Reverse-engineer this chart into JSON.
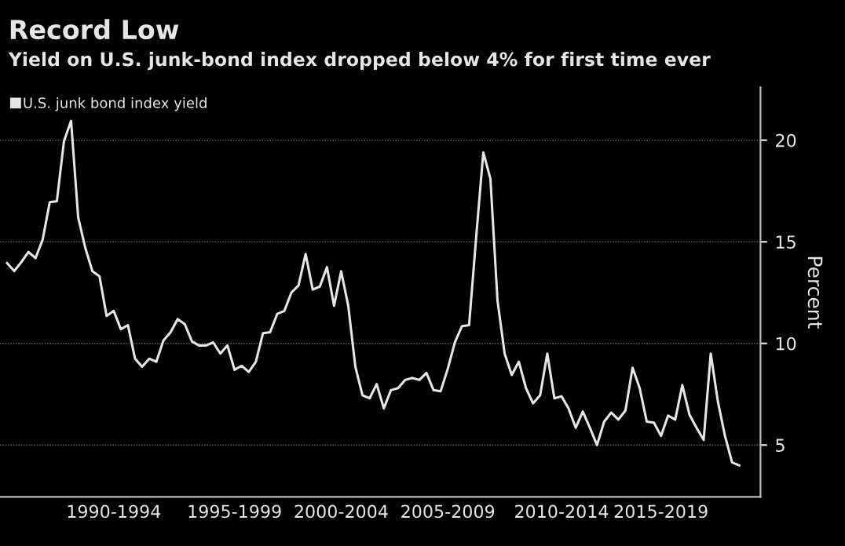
{
  "chart_data": {
    "type": "line",
    "title": "Record Low",
    "subtitle": "Yield on U.S. junk-bond index dropped below 4% for first time ever",
    "ylabel": "Percent",
    "categories": [
      null,
      null,
      null,
      null,
      null,
      null,
      null,
      null,
      null,
      null,
      null,
      null,
      null,
      null,
      null,
      "1990-1994",
      null,
      null,
      null,
      null,
      null,
      null,
      null,
      null,
      null,
      null,
      null,
      null,
      null,
      null,
      null,
      null,
      "1995-1999",
      null,
      null,
      null,
      null,
      null,
      null,
      null,
      null,
      null,
      null,
      null,
      null,
      null,
      null,
      "2000-2004",
      null,
      null,
      null,
      null,
      null,
      null,
      null,
      null,
      null,
      null,
      null,
      null,
      null,
      null,
      "2005-2009",
      null,
      null,
      null,
      null,
      null,
      null,
      null,
      null,
      null,
      null,
      null,
      null,
      null,
      null,
      null,
      "2010-2014",
      null,
      null,
      null,
      null,
      null,
      null,
      null,
      null,
      null,
      null,
      null,
      null,
      null,
      "2015-2019",
      null,
      null,
      null,
      null,
      null,
      null,
      null,
      null,
      null,
      null,
      null
    ],
    "series": [
      {
        "name": "U.S. junk bond index yield",
        "color": "#e6e6e6",
        "values": [
          13.95,
          13.56,
          14.0,
          14.5,
          14.2,
          15.1,
          16.95,
          17.0,
          19.95,
          20.95,
          16.2,
          14.7,
          13.55,
          13.3,
          11.35,
          11.6,
          10.7,
          10.9,
          9.25,
          8.85,
          9.25,
          9.1,
          10.15,
          10.55,
          11.2,
          10.95,
          10.1,
          9.9,
          9.9,
          10.05,
          9.5,
          9.9,
          8.7,
          8.9,
          8.6,
          9.1,
          10.5,
          10.55,
          11.45,
          11.6,
          12.5,
          12.85,
          14.4,
          12.65,
          12.8,
          13.75,
          11.85,
          13.55,
          11.85,
          8.85,
          7.45,
          7.3,
          8.0,
          6.8,
          7.7,
          7.8,
          8.2,
          8.3,
          8.2,
          8.55,
          7.7,
          7.65,
          8.75,
          10.05,
          10.85,
          10.9,
          15.25,
          19.4,
          18.1,
          12.1,
          9.5,
          8.45,
          9.1,
          7.8,
          7.05,
          7.45,
          9.5,
          7.3,
          7.4,
          6.8,
          5.85,
          6.65,
          5.85,
          5.0,
          6.15,
          6.6,
          6.25,
          6.7,
          8.8,
          7.8,
          6.15,
          6.1,
          5.45,
          6.45,
          6.25,
          7.95,
          6.5,
          5.85,
          5.25,
          9.5,
          7.15,
          5.45,
          4.15,
          4.0
        ]
      }
    ],
    "ylim": [
      2.45,
      22.6
    ],
    "yticks": [
      5,
      10,
      15,
      20
    ],
    "grid": "y",
    "legend": "top left",
    "line_style": "solid",
    "marker": "none"
  }
}
